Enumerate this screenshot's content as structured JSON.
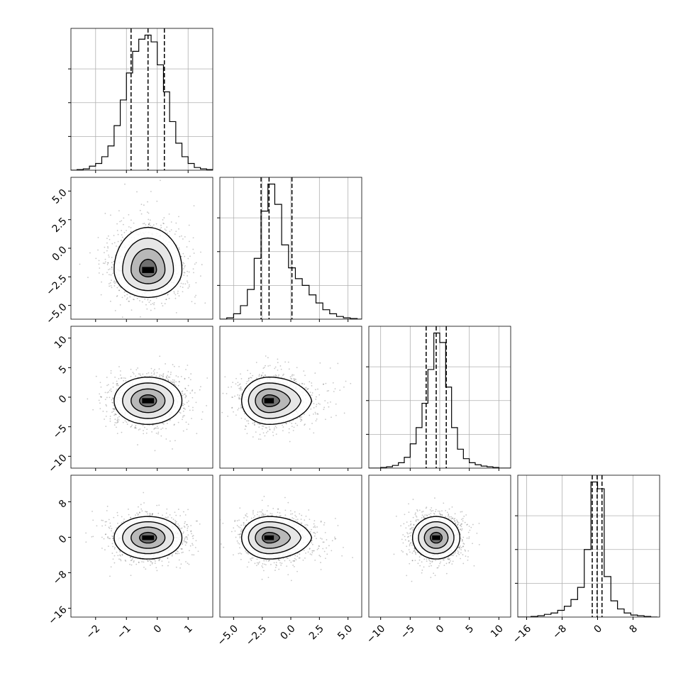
{
  "chart_data": {
    "type": "corner",
    "title": "",
    "n_params": 4,
    "params": [
      {
        "label": "",
        "range": [
          -2.8,
          1.8
        ],
        "ticks": [
          -2,
          -1,
          0,
          1
        ],
        "tick_labels": [
          "−2",
          "−1",
          "0",
          "1"
        ],
        "quantiles": [
          -0.85,
          -0.3,
          0.23
        ]
      },
      {
        "label": "",
        "range": [
          -6.2,
          6.2
        ],
        "ticks": [
          -5.0,
          -2.5,
          0.0,
          2.5,
          5.0
        ],
        "tick_labels": [
          "−5.0",
          "−2.5",
          "0.0",
          "2.5",
          "5.0"
        ],
        "quantiles": [
          -2.6,
          -1.9,
          0.1
        ]
      },
      {
        "label": "",
        "range": [
          -12,
          12
        ],
        "ticks": [
          -10,
          -5,
          0,
          5,
          10
        ],
        "tick_labels": [
          "−10",
          "−5",
          "0",
          "5",
          "10"
        ],
        "quantiles": [
          -2.3,
          -0.6,
          1.1
        ]
      },
      {
        "label": "",
        "range": [
          -18,
          14
        ],
        "ticks": [
          -16,
          -8,
          0,
          8
        ],
        "tick_labels": [
          "−16",
          "−8",
          "0",
          "8"
        ],
        "quantiles": [
          -1.2,
          -0.1,
          1.0
        ]
      }
    ],
    "histograms": [
      {
        "param": 0,
        "bins": [
          -2.8,
          -2.6,
          -2.4,
          -2.2,
          -2.0,
          -1.8,
          -1.6,
          -1.4,
          -1.2,
          -1.0,
          -0.8,
          -0.6,
          -0.4,
          -0.2,
          0.0,
          0.2,
          0.4,
          0.6,
          0.8,
          1.0,
          1.2,
          1.4,
          1.6,
          1.8
        ],
        "counts": [
          0.0,
          0.005,
          0.01,
          0.03,
          0.05,
          0.1,
          0.18,
          0.33,
          0.52,
          0.72,
          0.88,
          0.97,
          1.0,
          0.95,
          0.78,
          0.58,
          0.36,
          0.2,
          0.1,
          0.05,
          0.02,
          0.01,
          0.005
        ],
        "ymax": 1.05
      },
      {
        "param": 1,
        "bins": [
          -6.2,
          -5.6,
          -5.0,
          -4.4,
          -3.8,
          -3.2,
          -2.6,
          -2.0,
          -1.4,
          -0.8,
          -0.2,
          0.4,
          1.0,
          1.6,
          2.2,
          2.8,
          3.4,
          4.0,
          4.6,
          5.2,
          5.8,
          6.2
        ],
        "counts": [
          0.0,
          0.01,
          0.04,
          0.1,
          0.22,
          0.45,
          0.8,
          1.0,
          0.85,
          0.55,
          0.38,
          0.3,
          0.25,
          0.18,
          0.12,
          0.07,
          0.04,
          0.02,
          0.01,
          0.005,
          0.0
        ],
        "ymax": 1.05
      },
      {
        "param": 2,
        "bins": [
          -12,
          -11,
          -10,
          -9,
          -8,
          -7,
          -6,
          -5,
          -4,
          -3,
          -2,
          -1,
          0,
          1,
          2,
          3,
          4,
          5,
          6,
          7,
          8,
          9,
          10,
          11,
          12
        ],
        "counts": [
          0.0,
          0.0,
          0.005,
          0.01,
          0.02,
          0.04,
          0.08,
          0.18,
          0.3,
          0.48,
          0.73,
          1.0,
          0.93,
          0.6,
          0.3,
          0.14,
          0.07,
          0.04,
          0.025,
          0.015,
          0.01,
          0.005,
          0.0,
          0.0
        ],
        "ymax": 1.05
      },
      {
        "param": 3,
        "bins": [
          -18,
          -16.5,
          -15,
          -13.5,
          -12,
          -10.5,
          -9,
          -7.5,
          -6,
          -4.5,
          -3,
          -1.5,
          0,
          1.5,
          3,
          4.5,
          6,
          7.5,
          9,
          10.5,
          12,
          13.5
        ],
        "counts": [
          0.0,
          0.0,
          0.005,
          0.01,
          0.02,
          0.03,
          0.05,
          0.08,
          0.13,
          0.22,
          0.5,
          1.0,
          0.95,
          0.3,
          0.12,
          0.06,
          0.03,
          0.015,
          0.01,
          0.005,
          0.0
        ],
        "ymax": 1.05
      }
    ],
    "pairs": [
      {
        "x": 0,
        "y": 1,
        "center": [
          -0.3,
          -1.9
        ],
        "sigma": [
          0.55,
          1.2
        ],
        "skew": [
          0.0,
          1.0
        ]
      },
      {
        "x": 0,
        "y": 2,
        "center": [
          -0.3,
          -0.6
        ],
        "sigma": [
          0.55,
          2.0
        ],
        "skew": [
          0.0,
          0.0
        ]
      },
      {
        "x": 1,
        "y": 2,
        "center": [
          -1.9,
          -0.6
        ],
        "sigma": [
          1.2,
          2.0
        ],
        "skew": [
          1.0,
          0.0
        ]
      },
      {
        "x": 0,
        "y": 3,
        "center": [
          -0.3,
          -0.1
        ],
        "sigma": [
          0.55,
          2.4
        ],
        "skew": [
          0.0,
          0.0
        ]
      },
      {
        "x": 1,
        "y": 3,
        "center": [
          -1.9,
          -0.1
        ],
        "sigma": [
          1.2,
          2.4
        ],
        "skew": [
          1.0,
          0.0
        ]
      },
      {
        "x": 2,
        "y": 3,
        "center": [
          -0.6,
          -0.1
        ],
        "sigma": [
          2.0,
          2.4
        ],
        "skew": [
          0.0,
          0.0
        ]
      }
    ],
    "contour_levels": [
      0.5,
      1.0,
      1.5,
      2.0
    ],
    "grid": true,
    "legend": false
  }
}
